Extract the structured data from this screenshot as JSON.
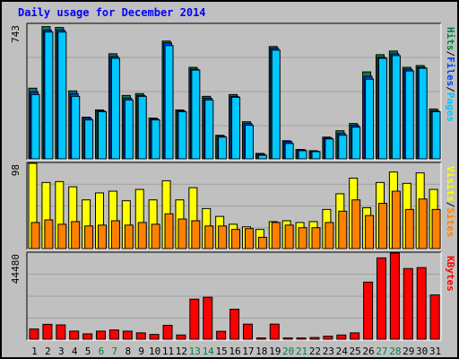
{
  "title": "Daily usage for December 2014",
  "colors": {
    "background": "#c0c0c0",
    "pages": "#00c8ff",
    "files": "#0040ff",
    "hits": "#008040",
    "sites": "#ff8000",
    "visits": "#ffff00",
    "kbytes": "#ff0000",
    "weekend_label": "#008040",
    "title": "#0000ff"
  },
  "chart_data": {
    "type": "bar",
    "title": "Daily usage for December 2014",
    "categories": [
      "1",
      "2",
      "3",
      "4",
      "5",
      "6",
      "7",
      "8",
      "9",
      "10",
      "11",
      "12",
      "13",
      "14",
      "15",
      "16",
      "17",
      "18",
      "19",
      "20",
      "21",
      "22",
      "23",
      "24",
      "25",
      "26",
      "27",
      "28",
      "29",
      "30",
      "31"
    ],
    "weekend_days": [
      "6",
      "7",
      "13",
      "14",
      "20",
      "21",
      "27",
      "28"
    ],
    "grid": true,
    "panels": [
      {
        "name": "traffic",
        "ylabel_parts": [
          "Pages",
          "Files",
          "Hits"
        ],
        "ylim": [
          0,
          743
        ],
        "max_label": "743",
        "series": [
          {
            "name": "Hits",
            "values": [
              390,
              730,
              725,
              375,
              230,
              270,
              580,
              350,
              360,
              225,
              650,
              270,
              505,
              345,
              130,
              355,
              205,
              30,
              620,
              100,
              52,
              45,
              120,
              155,
              195,
              480,
              575,
              595,
              505,
              515,
              275
            ]
          },
          {
            "name": "Files",
            "values": [
              370,
              710,
              710,
              360,
              225,
              265,
              565,
              335,
              350,
              220,
              640,
              265,
              495,
              335,
              125,
              345,
              195,
              25,
              610,
              95,
              50,
              42,
              115,
              140,
              185,
              455,
              560,
              580,
              495,
              505,
              265
            ]
          },
          {
            "name": "Pages",
            "values": [
              355,
              700,
              700,
              345,
              215,
              260,
              555,
              325,
              345,
              215,
              625,
              260,
              490,
              325,
              120,
              340,
              185,
              20,
              600,
              85,
              45,
              40,
              110,
              130,
              175,
              440,
              555,
              570,
              485,
              500,
              260
            ]
          }
        ]
      },
      {
        "name": "visitors",
        "ylabel_parts": [
          "Sites",
          "Visits"
        ],
        "ylim": [
          0,
          98
        ],
        "max_label": "98",
        "series": [
          {
            "name": "Visits",
            "values": [
              98,
              76,
              77,
              71,
              56,
              64,
              66,
              55,
              68,
              56,
              78,
              56,
              70,
              46,
              37,
              28,
              25,
              22,
              31,
              32,
              30,
              31,
              45,
              63,
              81,
              47,
              76,
              88,
              75,
              87,
              68
            ]
          },
          {
            "name": "Sites",
            "values": [
              30,
              33,
              28,
              31,
              26,
              27,
              32,
              27,
              30,
              28,
              40,
              34,
              32,
              26,
              26,
              22,
              23,
              13,
              30,
              27,
              24,
              24,
              30,
              43,
              56,
              38,
              52,
              66,
              45,
              57,
              45
            ]
          }
        ]
      },
      {
        "name": "kbytes",
        "ylabel_parts": [
          "KBytes"
        ],
        "ylim": [
          0,
          44480
        ],
        "max_label": "44480",
        "series": [
          {
            "name": "KBytes",
            "values": [
              5300,
              7700,
              7400,
              4200,
              2800,
              4200,
              4800,
              4200,
              3300,
              2500,
              7200,
              2200,
              20700,
              21700,
              4100,
              15500,
              7800,
              700,
              7800,
              700,
              700,
              900,
              1600,
              2200,
              3300,
              29500,
              42000,
              44480,
              36500,
              37000,
              22900
            ]
          }
        ]
      }
    ]
  }
}
